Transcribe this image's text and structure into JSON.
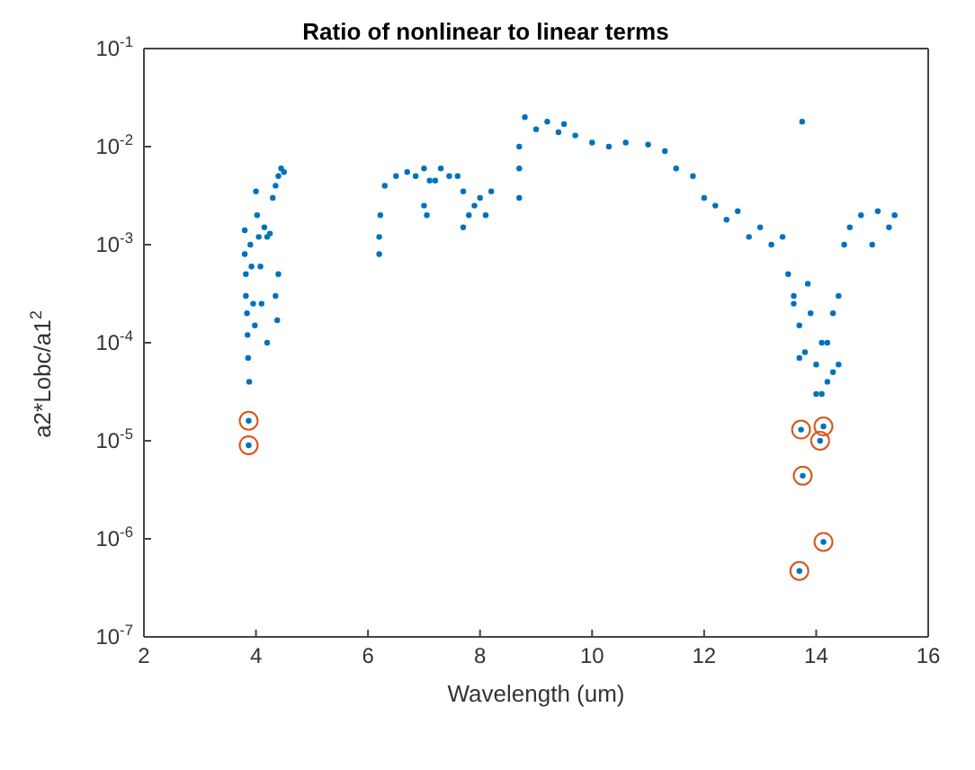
{
  "chart_data": {
    "type": "scatter",
    "title": "Ratio of nonlinear to linear terms",
    "xlabel": "Wavelength (um)",
    "ylabel": "a2*Lobc/a1$^{2}$",
    "log": "y",
    "grid": false,
    "legend": false,
    "marker": "circle",
    "xlim": [
      2,
      16
    ],
    "xticks": [
      2,
      4,
      6,
      8,
      10,
      12,
      14,
      16
    ],
    "ylim": [
      1e-07,
      0.1
    ],
    "yticks": [
      {
        "value": 1e-07,
        "label": "10$^{-7}$"
      },
      {
        "value": 1e-06,
        "label": "10$^{-6}$"
      },
      {
        "value": 1e-05,
        "label": "10$^{-5}$"
      },
      {
        "value": 0.0001,
        "label": "10$^{-4}$"
      },
      {
        "value": 0.001,
        "label": "10$^{-3}$"
      },
      {
        "value": 0.01,
        "label": "10$^{-2}$"
      },
      {
        "value": 0.1,
        "label": "10$^{-1}$"
      }
    ],
    "series": [
      {
        "color": "#0072bd",
        "x": [
          3.8,
          3.8,
          3.82,
          3.82,
          3.84,
          3.85,
          3.86,
          3.88,
          3.9,
          3.92,
          3.95,
          3.98,
          4.0,
          4.02,
          4.05,
          4.08,
          4.1,
          4.15,
          4.2,
          4.25,
          4.3,
          4.35,
          4.4,
          4.45,
          4.5,
          4.2,
          4.35,
          4.38,
          4.4,
          3.87,
          3.87,
          6.2,
          6.2,
          6.22,
          6.3,
          6.5,
          6.7,
          6.85,
          7.0,
          7.1,
          7.2,
          7.3,
          7.45,
          7.6,
          7.7,
          7.8,
          7.9,
          8.0,
          8.1,
          8.2,
          7.0,
          7.05,
          7.7,
          8.7,
          8.7,
          8.7,
          8.8,
          9.0,
          9.2,
          9.4,
          9.5,
          9.7,
          10.0,
          10.3,
          10.6,
          11.0,
          11.3,
          11.5,
          11.8,
          12.0,
          12.2,
          12.4,
          12.6,
          12.8,
          13.0,
          13.2,
          13.4,
          13.5,
          13.6,
          13.7,
          13.8,
          13.9,
          14.0,
          14.1,
          14.2,
          14.3,
          14.4,
          14.5,
          14.6,
          14.8,
          15.0,
          15.1,
          15.3,
          15.4,
          13.75,
          13.6,
          13.7,
          13.85,
          14.0,
          14.1,
          14.2,
          14.3,
          14.4,
          13.73,
          14.13,
          14.07,
          13.76,
          14.13,
          13.7
        ],
        "values": [
          0.0014,
          0.0008,
          0.0005,
          0.0003,
          0.0002,
          0.00012,
          7e-05,
          4e-05,
          0.001,
          0.0006,
          0.00025,
          0.00015,
          0.0035,
          0.002,
          0.0012,
          0.0006,
          0.00025,
          0.0015,
          0.0012,
          0.0013,
          0.003,
          0.004,
          0.005,
          0.006,
          0.0055,
          0.0001,
          0.0003,
          0.00017,
          0.0005,
          1.6e-05,
          9e-06,
          0.0008,
          0.0012,
          0.002,
          0.004,
          0.005,
          0.0055,
          0.005,
          0.006,
          0.0045,
          0.0045,
          0.006,
          0.005,
          0.005,
          0.0035,
          0.002,
          0.0025,
          0.003,
          0.002,
          0.0035,
          0.0025,
          0.002,
          0.0015,
          0.003,
          0.006,
          0.01,
          0.02,
          0.015,
          0.018,
          0.014,
          0.017,
          0.013,
          0.011,
          0.01,
          0.011,
          0.0105,
          0.009,
          0.006,
          0.005,
          0.003,
          0.0025,
          0.0018,
          0.0022,
          0.0012,
          0.0015,
          0.001,
          0.0012,
          0.0005,
          0.0003,
          0.00015,
          8e-05,
          0.0002,
          6e-05,
          0.0001,
          4e-05,
          0.0002,
          0.0003,
          0.001,
          0.0015,
          0.002,
          0.001,
          0.0022,
          0.0015,
          0.002,
          0.018,
          0.00025,
          7e-05,
          0.0004,
          3e-05,
          3e-05,
          0.0001,
          5e-05,
          6e-05,
          1.3e-05,
          1.4e-05,
          1e-05,
          4.4e-06,
          9.3e-07,
          4.7e-07
        ]
      },
      {
        "color": "#d95319",
        "x": [
          3.87,
          3.87,
          13.73,
          14.13,
          14.07,
          13.76,
          14.13,
          13.7
        ],
        "values": [
          1.6e-05,
          9e-06,
          1.3e-05,
          1.4e-05,
          1e-05,
          4.4e-06,
          9.3e-07,
          4.7e-07
        ]
      }
    ]
  }
}
